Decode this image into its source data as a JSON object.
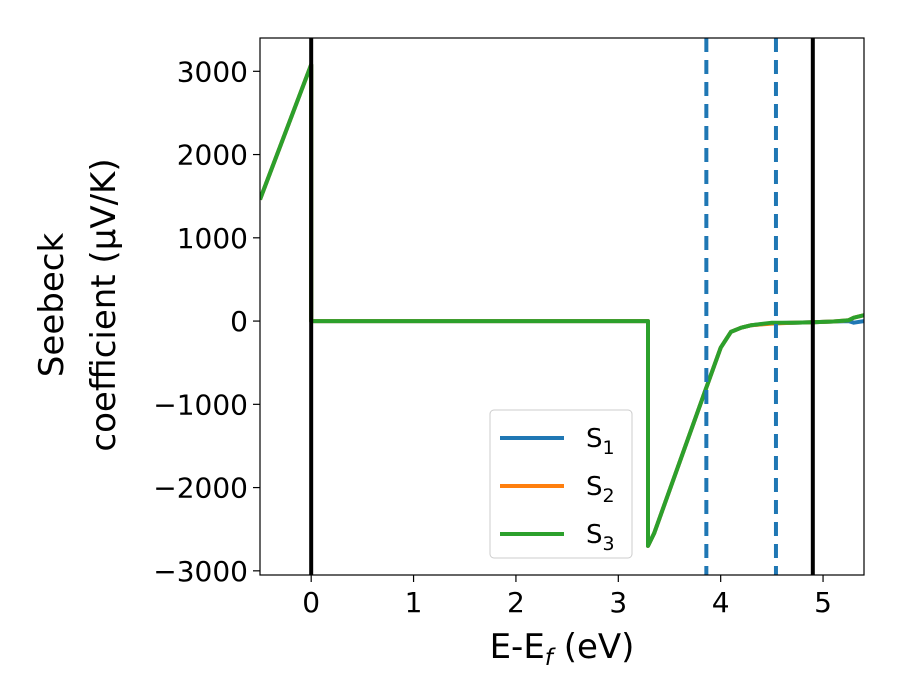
{
  "chart_data": {
    "type": "line",
    "xlabel": "E-E",
    "xlabel_sub": "f",
    "xlabel_unit": " (eV)",
    "ylabel_line1": "Seebeck",
    "ylabel_line2": "coefficient  (μV/K)",
    "xlim": [
      -0.5,
      5.4
    ],
    "ylim": [
      -3050,
      3400
    ],
    "xticks": [
      0,
      1,
      2,
      3,
      4,
      5
    ],
    "xtick_labels": [
      "0",
      "1",
      "2",
      "3",
      "4",
      "5"
    ],
    "yticks": [
      -3000,
      -2000,
      -1000,
      0,
      1000,
      2000,
      3000
    ],
    "ytick_labels": [
      "−3000",
      "−2000",
      "−1000",
      "0",
      "1000",
      "2000",
      "3000"
    ],
    "legend_position": "lower-center",
    "grid": false,
    "series": [
      {
        "name": "S",
        "name_sub": "1",
        "color": "#1f77b4",
        "x": [
          -0.5,
          0.0,
          0.0,
          0.05,
          3.29,
          3.29,
          3.35,
          3.86,
          4.0,
          4.1,
          4.2,
          4.3,
          4.5,
          4.7,
          4.9,
          5.1,
          5.25,
          5.3,
          5.4
        ],
        "y": [
          1460,
          3080,
          0,
          0,
          0,
          -2700,
          -2550,
          -800,
          -320,
          -130,
          -80,
          -50,
          -25,
          -20,
          -15,
          -5,
          0,
          -20,
          0
        ]
      },
      {
        "name": "S",
        "name_sub": "2",
        "color": "#ff7f0e",
        "x": [
          -0.5,
          0.0,
          0.0,
          0.05,
          3.29,
          3.29,
          3.35,
          3.86,
          4.0,
          4.1,
          4.2,
          4.3,
          4.5,
          4.7,
          4.9,
          5.1,
          5.25,
          5.3,
          5.4
        ],
        "y": [
          1460,
          3080,
          0,
          0,
          0,
          -2700,
          -2550,
          -800,
          -320,
          -130,
          -80,
          -50,
          -30,
          -20,
          -15,
          -5,
          10,
          40,
          70
        ]
      },
      {
        "name": "S",
        "name_sub": "3",
        "color": "#2ca02c",
        "x": [
          -0.5,
          0.0,
          0.0,
          0.05,
          3.29,
          3.29,
          3.35,
          3.86,
          4.0,
          4.1,
          4.2,
          4.3,
          4.5,
          4.7,
          4.9,
          5.1,
          5.25,
          5.3,
          5.4
        ],
        "y": [
          1460,
          3080,
          0,
          0,
          0,
          -2700,
          -2550,
          -800,
          -320,
          -130,
          -80,
          -50,
          -20,
          -20,
          -15,
          -5,
          10,
          40,
          70
        ]
      }
    ],
    "vlines": [
      {
        "x": 0.0,
        "color": "#000000",
        "style": "solid"
      },
      {
        "x": 4.9,
        "color": "#000000",
        "style": "solid"
      },
      {
        "x": 3.86,
        "color": "#1f77b4",
        "style": "dashed"
      },
      {
        "x": 4.54,
        "color": "#1f77b4",
        "style": "dashed"
      }
    ]
  }
}
